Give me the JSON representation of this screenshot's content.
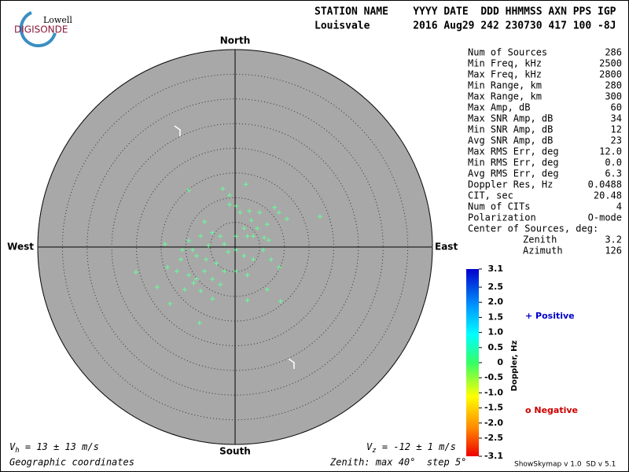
{
  "logo": {
    "top": "Lowell",
    "bottom": "DIGISONDE"
  },
  "header": {
    "columns": "STATION NAME    YYYY DATE  DDD HHMMSS AXN PPS IGP",
    "values": "Louisvale       2016 Aug29 242 230730 417 100 -8J"
  },
  "stats": [
    [
      "Num of Sources",
      "286"
    ],
    [
      "Min Freq, kHz",
      "2500"
    ],
    [
      "Max Freq, kHz",
      "2800"
    ],
    [
      "Min Range, km",
      "280"
    ],
    [
      "Max Range, km",
      "300"
    ],
    [
      "Max Amp, dB",
      "60"
    ],
    [
      "Max SNR Amp, dB",
      "34"
    ],
    [
      "Min SNR Amp, dB",
      "12"
    ],
    [
      "Avg SNR Amp, dB",
      "23"
    ],
    [
      "Max RMS Err, deg",
      "12.0"
    ],
    [
      "Min RMS Err, deg",
      "0.0"
    ],
    [
      "Avg RMS Err, deg",
      "6.3"
    ],
    [
      "Doppler Res, Hz",
      "0.0488"
    ],
    [
      "CIT, sec",
      "20.48"
    ],
    [
      "Num of CITs",
      "4"
    ],
    [
      "Polarization",
      "O-mode"
    ]
  ],
  "center_title": "Center of Sources, deg:",
  "center": [
    [
      "Zenith",
      "3.2"
    ],
    [
      "Azimuth",
      "126"
    ]
  ],
  "colorbar": {
    "label": "Doppler, Hz",
    "lim": [
      3.1,
      -3.1
    ],
    "ticks": [
      3.1,
      2.5,
      {
        "value": 2,
        "label": "2.0"
      },
      1.5,
      {
        "value": 1,
        "label": "1.0"
      },
      0.5,
      0,
      -0.5,
      {
        "value": -1,
        "label": "-1.0"
      },
      -1.5,
      {
        "value": -2,
        "label": "-2.0"
      },
      -2.5,
      -3.1
    ]
  },
  "legend": {
    "positive": "+ Positive",
    "negative": "o Negative"
  },
  "footer": {
    "vh_symbol": "V",
    "vh_sub": "h",
    "vh_text": " = 13 ± 13 m/s",
    "vz_symbol": "V",
    "vz_sub": "z",
    "vz_text": " = -12 ± 1 m/s",
    "coords": "Geographic coordinates",
    "zenith": "Zenith: max 40°  step 5°",
    "version": "ShowSkymap v 1.0  SD v 5.1"
  },
  "chart_data": {
    "type": "scatter",
    "color": "#66ff99",
    "directions": {
      "north": "North",
      "south": "South",
      "west": "West",
      "east": "East"
    },
    "xlim": [
      -40,
      40
    ],
    "ylim": [
      -40,
      40
    ],
    "rticks": [
      5,
      10,
      15,
      20,
      25,
      30,
      35,
      40
    ],
    "x": [
      -9.4,
      -2.5,
      2.2,
      -1.1,
      0.2,
      17.2,
      8.0,
      8.9,
      5.0,
      3.3,
      1.8,
      2.5,
      4.5,
      6.5,
      10.5,
      -6.2,
      -4.6,
      -3.0,
      -7.0,
      -9.4,
      -14.2,
      -10.7,
      -7.8,
      -5.9,
      -3.8,
      -1.4,
      0.2,
      1.8,
      3.7,
      5.7,
      7.3,
      8.9,
      -13.7,
      -11.8,
      -9.4,
      -7.8,
      -6.2,
      -4.6,
      -2.2,
      0.2,
      2.5,
      -20.1,
      -15.8,
      -10.2,
      -7.0,
      -4.6,
      2.5,
      6.5,
      9.2,
      -13.2,
      -7.2,
      -8.4,
      -3.0,
      -11.0,
      -8.6,
      -5.4,
      -2.2,
      0.2,
      1.0,
      -1.1,
      3.7,
      5.9,
      2.9,
      6.8
    ],
    "values": [
      11.5,
      11.8,
      12.7,
      10.5,
      8.3,
      6.2,
      8.0,
      7.0,
      7.0,
      5.4,
      3.8,
      2.2,
      3.8,
      4.6,
      5.7,
      5.1,
      2.9,
      2.2,
      2.2,
      1.3,
      0.6,
      -0.6,
      -1.8,
      -2.5,
      -3.3,
      -1.0,
      -0.6,
      -1.8,
      -2.5,
      -0.6,
      -2.5,
      -4.1,
      -4.1,
      -4.9,
      -5.7,
      -6.5,
      -4.9,
      -6.5,
      -4.9,
      -4.9,
      -5.7,
      -5.1,
      -8.1,
      -8.6,
      -8.9,
      -10.5,
      -10.8,
      -8.6,
      -11.0,
      -11.5,
      -15.4,
      -7.3,
      -7.6,
      -2.5,
      -0.6,
      0.3,
      0.6,
      2.2,
      7.0,
      8.6,
      2.2,
      1.9,
      7.3,
      1.4
    ]
  }
}
